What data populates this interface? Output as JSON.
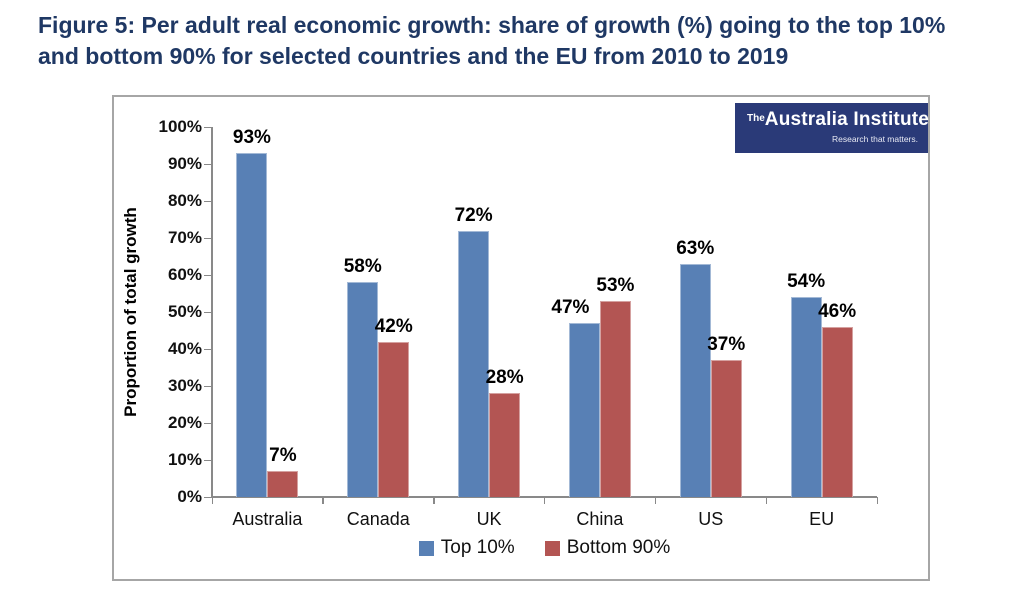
{
  "figure_title": {
    "lines": [
      "Figure 5: Per adult real economic growth: share of growth (%) going to the top 10%",
      "and bottom 90% for selected countries and the EU from 2010 to 2019"
    ]
  },
  "logo": {
    "prefix": "The",
    "name": "Australia Institute",
    "tagline": "Research that matters."
  },
  "chart_data": {
    "type": "bar",
    "title": "",
    "categories": [
      "Australia",
      "Canada",
      "UK",
      "China",
      "US",
      "EU"
    ],
    "series": [
      {
        "name": "Top 10%",
        "key": "top10",
        "color": "#5880B5",
        "values": [
          93,
          58,
          72,
          47,
          63,
          54
        ],
        "labels": [
          "93%",
          "58%",
          "72%",
          "47%",
          "63%",
          "54%"
        ]
      },
      {
        "name": "Bottom 90%",
        "key": "bottom90",
        "color": "#B35553",
        "values": [
          7,
          42,
          28,
          53,
          37,
          46
        ],
        "labels": [
          "7%",
          "42%",
          "28%",
          "53%",
          "37%",
          "46%"
        ]
      }
    ],
    "xlabel": "",
    "ylabel": "Proportion of total growth",
    "ylim": [
      0,
      100
    ],
    "ytick_step": 10,
    "ytick_labels": [
      "0%",
      "10%",
      "20%",
      "30%",
      "40%",
      "50%",
      "60%",
      "70%",
      "80%",
      "90%",
      "100%"
    ],
    "grid": false,
    "legend_position": "bottom",
    "label_dx": [
      [
        0,
        0,
        0,
        -14,
        0,
        0
      ],
      [
        0,
        0,
        0,
        0,
        0,
        0
      ]
    ],
    "colors": {
      "axis": "#898989",
      "label_text": "#000000",
      "frame_border": "#A6A6A6"
    }
  }
}
